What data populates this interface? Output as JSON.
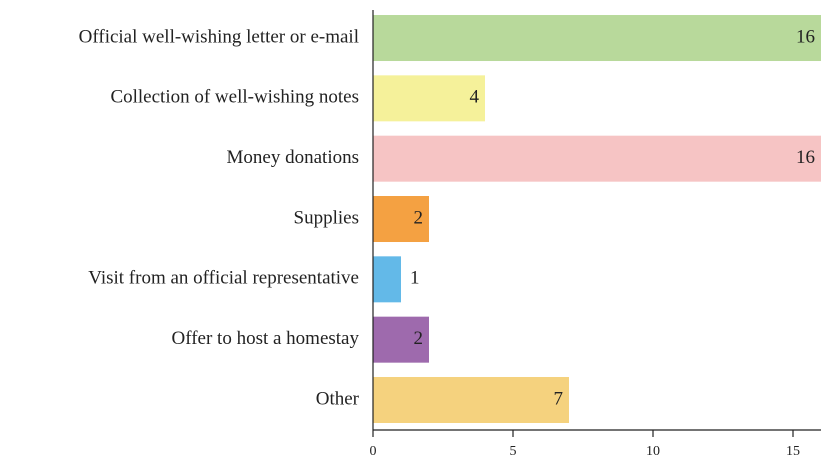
{
  "chart_data": {
    "type": "bar",
    "orientation": "horizontal",
    "categories": [
      "Official well-wishing letter or e-mail",
      "Collection of well-wishing notes",
      "Money donations",
      "Supplies",
      "Visit from an official representative",
      "Offer to host a homestay",
      "Other"
    ],
    "values": [
      16,
      4,
      16,
      2,
      1,
      2,
      7
    ],
    "colors": [
      "#b8d99b",
      "#f5f19a",
      "#f6c4c4",
      "#f4a142",
      "#63b9e8",
      "#9e6aad",
      "#f5d27e"
    ],
    "xlim": [
      0,
      16
    ],
    "xticks": [
      0,
      5,
      10,
      15
    ]
  }
}
